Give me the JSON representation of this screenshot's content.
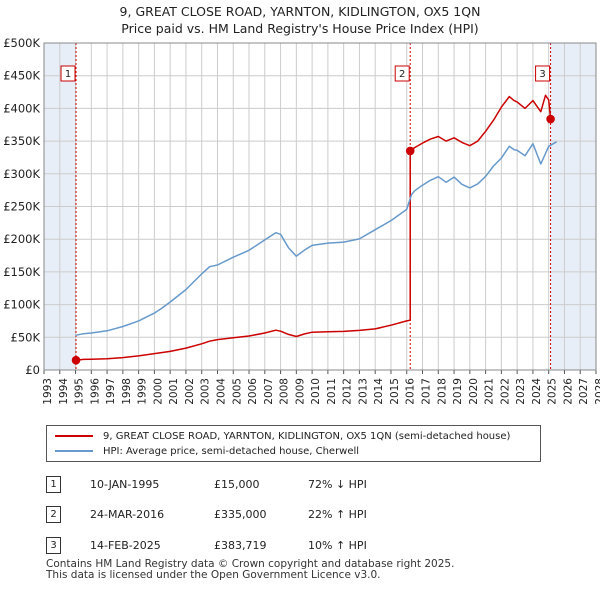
{
  "chart_data": {
    "type": "line",
    "title": "9, GREAT CLOSE ROAD, YARNTON, KIDLINGTON, OX5 1QN",
    "subtitle": "Price paid vs. HM Land Registry's House Price Index (HPI)",
    "xlabel": "",
    "ylabel": "",
    "xlim": [
      1993,
      2028
    ],
    "ylim": [
      0,
      500000
    ],
    "x_ticks": [
      1993,
      1994,
      1995,
      1996,
      1997,
      1998,
      1999,
      2000,
      2001,
      2002,
      2003,
      2004,
      2005,
      2006,
      2007,
      2008,
      2009,
      2010,
      2011,
      2012,
      2013,
      2014,
      2015,
      2016,
      2017,
      2018,
      2019,
      2020,
      2021,
      2022,
      2023,
      2024,
      2025,
      2026,
      2027,
      2028
    ],
    "y_ticks": [
      {
        "value": 0,
        "label": "£0"
      },
      {
        "value": 50000,
        "label": "£50K"
      },
      {
        "value": 100000,
        "label": "£100K"
      },
      {
        "value": 150000,
        "label": "£150K"
      },
      {
        "value": 200000,
        "label": "£200K"
      },
      {
        "value": 250000,
        "label": "£250K"
      },
      {
        "value": 300000,
        "label": "£300K"
      },
      {
        "value": 350000,
        "label": "£350K"
      },
      {
        "value": 400000,
        "label": "£400K"
      },
      {
        "value": 450000,
        "label": "£450K"
      },
      {
        "value": 500000,
        "label": "£500K"
      }
    ],
    "grid": true,
    "shaded_ranges": [
      [
        1993,
        1995.03
      ],
      [
        2025.12,
        2028
      ]
    ],
    "series": [
      {
        "name": "9, GREAT CLOSE ROAD, YARNTON, KIDLINGTON, OX5 1QN (semi-detached house)",
        "color": "#cc0000",
        "x": [
          1995.03,
          1995.5,
          1996,
          1997,
          1998,
          1999,
          2000,
          2001,
          2002,
          2003,
          2003.5,
          2004,
          2005,
          2006,
          2007,
          2007.7,
          2008,
          2008.5,
          2009,
          2009.5,
          2010,
          2011,
          2012,
          2013,
          2014,
          2015,
          2016.0,
          2016.22,
          2016.22,
          2016.5,
          2017,
          2017.5,
          2018,
          2018.5,
          2019,
          2019.5,
          2020,
          2020.5,
          2021,
          2021.5,
          2022,
          2022.5,
          2022.8,
          2023,
          2023.5,
          2024,
          2024.5,
          2024.8,
          2025.0,
          2025.12,
          2025.2
        ],
        "y": [
          15000,
          16200,
          16500,
          17300,
          19000,
          21500,
          25000,
          28500,
          33500,
          40000,
          44000,
          46500,
          49200,
          52000,
          56500,
          60800,
          59300,
          54500,
          51200,
          55000,
          57800,
          58500,
          59000,
          60500,
          62800,
          68500,
          75000,
          76200,
          335000,
          340000,
          347000,
          353000,
          357000,
          350000,
          355000,
          348000,
          343000,
          350000,
          365000,
          382000,
          402000,
          418000,
          412000,
          410000,
          400000,
          412000,
          395000,
          420000,
          413000,
          383719,
          380000
        ]
      },
      {
        "name": "HPI: Average price, semi-detached house, Cherwell",
        "color": "#6699cc",
        "x": [
          1995.0,
          1995.5,
          1996,
          1997,
          1998,
          1999,
          2000,
          2000.5,
          2001,
          2002,
          2003,
          2003.5,
          2004,
          2005,
          2006,
          2007,
          2007.7,
          2008,
          2008.5,
          2009,
          2009.5,
          2010,
          2011,
          2012,
          2013,
          2014,
          2015,
          2016.0,
          2016.3,
          2016.5,
          2017,
          2017.5,
          2018,
          2018.5,
          2019,
          2019.5,
          2020,
          2020.5,
          2021,
          2021.5,
          2022,
          2022.5,
          2022.8,
          2023,
          2023.5,
          2024,
          2024.5,
          2025.0,
          2025.5
        ],
        "y": [
          53000,
          55500,
          56500,
          60000,
          66500,
          75000,
          87000,
          95000,
          104000,
          123000,
          147000,
          158000,
          160500,
          172500,
          183000,
          199000,
          210000,
          207500,
          187000,
          174000,
          183000,
          190500,
          194000,
          195500,
          200500,
          214500,
          228500,
          245500,
          268000,
          274000,
          282500,
          290000,
          295500,
          287000,
          295000,
          284000,
          278500,
          284500,
          296000,
          312000,
          324000,
          342000,
          337000,
          336000,
          327500,
          346000,
          315000,
          342000,
          349000
        ]
      }
    ],
    "sales": [
      {
        "label": "1",
        "x": 1995.03,
        "y": 15000
      },
      {
        "label": "2",
        "x": 2016.22,
        "y": 335000
      },
      {
        "label": "3",
        "x": 2025.12,
        "y": 383719
      }
    ]
  },
  "legend": {
    "property_label": "9, GREAT CLOSE ROAD, YARNTON, KIDLINGTON, OX5 1QN (semi-detached house)",
    "hpi_label": "HPI: Average price, semi-detached house, Cherwell"
  },
  "sales_table": [
    {
      "num": "1",
      "date": "10-JAN-1995",
      "price": "£15,000",
      "hpi": "72% ↓ HPI"
    },
    {
      "num": "2",
      "date": "24-MAR-2016",
      "price": "£335,000",
      "hpi": "22% ↑ HPI"
    },
    {
      "num": "3",
      "date": "14-FEB-2025",
      "price": "£383,719",
      "hpi": "10% ↑ HPI"
    }
  ],
  "footer": {
    "line1": "Contains HM Land Registry data © Crown copyright and database right 2025.",
    "line2": "This data is licensed under the Open Government Licence v3.0."
  },
  "colors": {
    "property": "#cc0000",
    "hpi": "#6699cc",
    "shade": "#e8eef7",
    "grid": "#cccccc"
  }
}
